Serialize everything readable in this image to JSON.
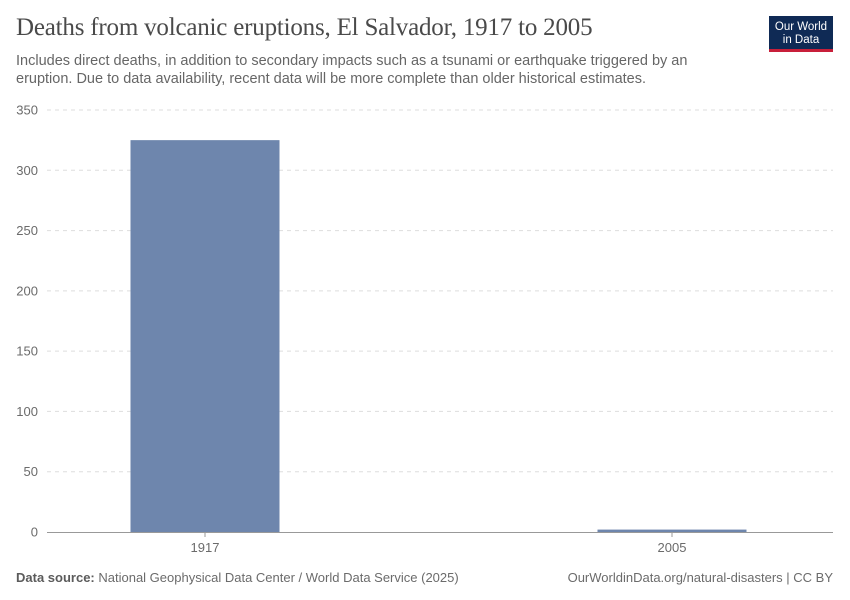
{
  "header": {
    "title": "Deaths from volcanic eruptions, El Salvador, 1917 to 2005",
    "subtitle": "Includes direct deaths, in addition to secondary impacts such as a tsunami or earthquake triggered by an eruption. Due to data availability, recent data will be more complete than older historical estimates.",
    "logo_line1": "Our World",
    "logo_line2": "in Data"
  },
  "footer": {
    "source_label": "Data source:",
    "source_text": "National Geophysical Data Center / World Data Service (2025)",
    "link_text": "OurWorldinData.org/natural-disasters | CC BY"
  },
  "colors": {
    "bar": "#6e86ad",
    "logo_bg": "#0f2a55",
    "logo_accent": "#c81f3a"
  },
  "chart_data": {
    "type": "bar",
    "title": "Deaths from volcanic eruptions, El Salvador, 1917 to 2005",
    "categories": [
      "1917",
      "2005"
    ],
    "values": [
      325,
      2
    ],
    "xlabel": "",
    "ylabel": "",
    "ylim": [
      0,
      350
    ],
    "yticks": [
      0,
      50,
      100,
      150,
      200,
      250,
      300,
      350
    ],
    "grid": true
  }
}
